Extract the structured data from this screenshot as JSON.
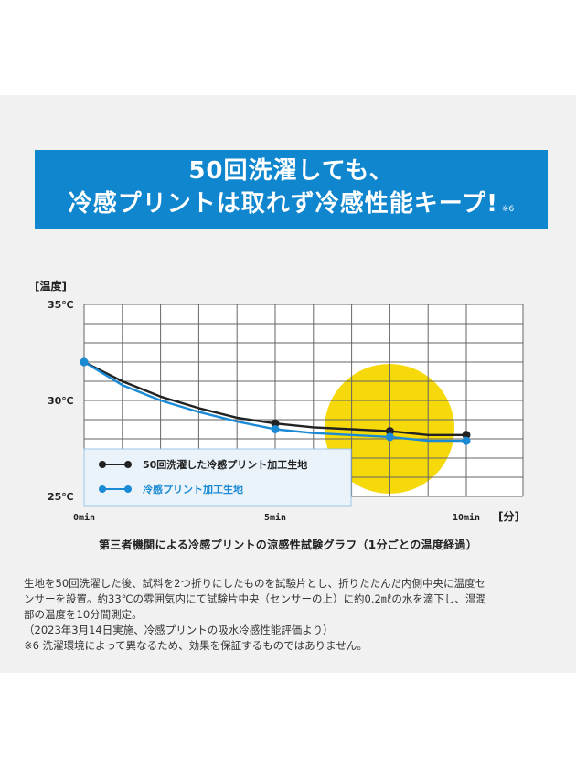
{
  "banner": {
    "line1": "50回洗濯しても、",
    "line2": "冷感プリントは取れず冷感性能キープ!",
    "note": "※6"
  },
  "chart_data": {
    "type": "line",
    "y_unit_label": "[温度]",
    "x_unit_label": "[分]",
    "x_tick_labels": [
      "0min",
      "5min",
      "10min"
    ],
    "y_tick_labels": [
      "35℃",
      "30℃",
      "25℃"
    ],
    "xlim": [
      0,
      11
    ],
    "ylim": [
      25,
      35
    ],
    "grid": true,
    "legend_position": "bottom-left",
    "highlight_circle_color": "#f5d90a",
    "series": [
      {
        "name": "50回洗濯した冷感プリント加工生地",
        "color": "#222222",
        "x": [
          0,
          1,
          2,
          3,
          4,
          5,
          6,
          7,
          8,
          9,
          10
        ],
        "y": [
          32.0,
          31.0,
          30.2,
          29.6,
          29.1,
          28.8,
          28.6,
          28.5,
          28.4,
          28.2,
          28.2
        ],
        "markers_at": [
          0,
          5,
          8,
          10
        ]
      },
      {
        "name": "冷感プリント加工生地",
        "color": "#1a8ad4",
        "x": [
          0,
          1,
          2,
          3,
          4,
          5,
          6,
          7,
          8,
          9,
          10
        ],
        "y": [
          32.0,
          30.8,
          30.0,
          29.4,
          28.9,
          28.5,
          28.3,
          28.2,
          28.1,
          27.9,
          27.9
        ],
        "markers_at": [
          0,
          5,
          8,
          10
        ]
      }
    ]
  },
  "caption": "第三者機関による冷感プリントの涼感性試験グラフ（1分ごとの温度経過）",
  "notes": [
    "生地を50回洗濯した後、試料を2つ折りにしたものを試験片とし、折りたたんだ内側中央に温度セ",
    "ンサーを設置。約33℃の雰囲気内にて試験片中央（センサーの上）に約0.2㎖の水を滴下し、湿潤",
    "部の温度を10分間測定。",
    "（2023年3月14日実施、冷感プリントの吸水冷感性能評価より）",
    "※6 洗濯環境によって異なるため、効果を保証するものではありません。"
  ]
}
